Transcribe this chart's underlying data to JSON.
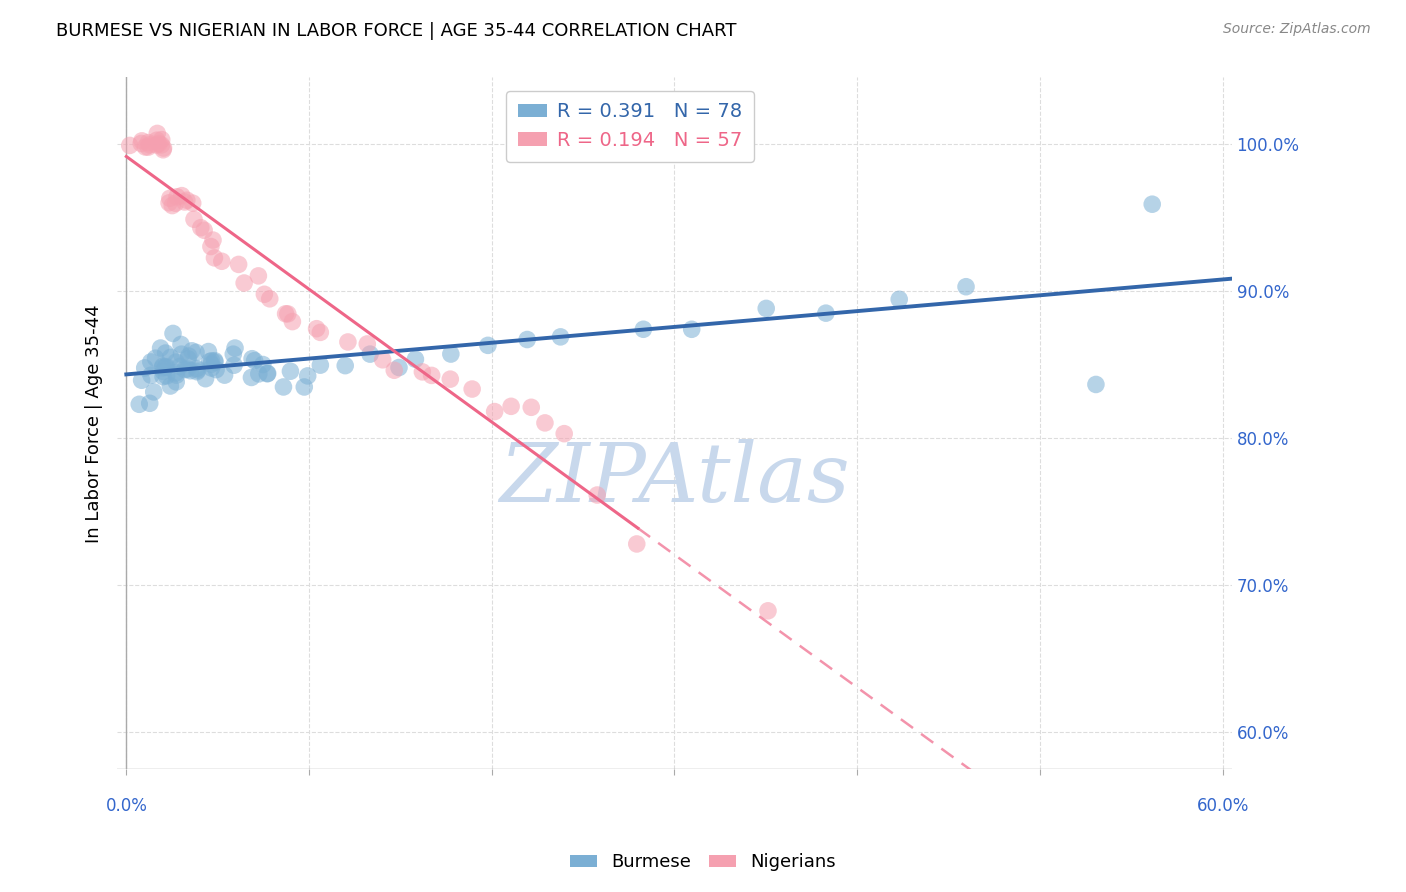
{
  "title": "BURMESE VS NIGERIAN IN LABOR FORCE | AGE 35-44 CORRELATION CHART",
  "source": "Source: ZipAtlas.com",
  "ylabel": "In Labor Force | Age 35-44",
  "y_ticks": [
    0.6,
    0.7,
    0.8,
    0.9,
    1.0
  ],
  "y_tick_labels": [
    "60.0%",
    "70.0%",
    "80.0%",
    "90.0%",
    "100.0%"
  ],
  "xlim": [
    -0.005,
    0.605
  ],
  "ylim": [
    0.575,
    1.045
  ],
  "blue_R": 0.391,
  "blue_N": 78,
  "pink_R": 0.194,
  "pink_N": 57,
  "blue_color": "#7BAFD4",
  "pink_color": "#F5A0B0",
  "blue_line_color": "#3366AA",
  "pink_line_color": "#EE6688",
  "watermark": "ZIPAtlas",
  "watermark_color": "#C8D8EC",
  "legend_label_blue": "Burmese",
  "legend_label_pink": "Nigerians",
  "blue_scatter_x": [
    0.005,
    0.008,
    0.01,
    0.012,
    0.015,
    0.015,
    0.016,
    0.017,
    0.018,
    0.019,
    0.02,
    0.02,
    0.021,
    0.022,
    0.022,
    0.023,
    0.023,
    0.024,
    0.025,
    0.025,
    0.026,
    0.027,
    0.028,
    0.028,
    0.03,
    0.03,
    0.031,
    0.032,
    0.033,
    0.035,
    0.035,
    0.036,
    0.037,
    0.038,
    0.04,
    0.04,
    0.041,
    0.042,
    0.043,
    0.044,
    0.045,
    0.046,
    0.048,
    0.05,
    0.05,
    0.052,
    0.053,
    0.055,
    0.058,
    0.06,
    0.065,
    0.068,
    0.07,
    0.072,
    0.075,
    0.078,
    0.08,
    0.085,
    0.09,
    0.095,
    0.1,
    0.11,
    0.12,
    0.13,
    0.15,
    0.16,
    0.18,
    0.2,
    0.22,
    0.24,
    0.28,
    0.31,
    0.35,
    0.38,
    0.42,
    0.46,
    0.53,
    0.56
  ],
  "blue_scatter_y": [
    0.84,
    0.83,
    0.845,
    0.82,
    0.85,
    0.835,
    0.855,
    0.845,
    0.85,
    0.84,
    0.855,
    0.845,
    0.84,
    0.855,
    0.848,
    0.842,
    0.838,
    0.855,
    0.862,
    0.845,
    0.85,
    0.84,
    0.855,
    0.845,
    0.862,
    0.85,
    0.855,
    0.845,
    0.84,
    0.855,
    0.84,
    0.86,
    0.855,
    0.845,
    0.855,
    0.845,
    0.85,
    0.858,
    0.85,
    0.842,
    0.855,
    0.845,
    0.848,
    0.855,
    0.845,
    0.852,
    0.843,
    0.858,
    0.855,
    0.848,
    0.85,
    0.84,
    0.855,
    0.845,
    0.852,
    0.843,
    0.848,
    0.842,
    0.845,
    0.84,
    0.85,
    0.848,
    0.852,
    0.855,
    0.85,
    0.858,
    0.862,
    0.865,
    0.868,
    0.872,
    0.875,
    0.88,
    0.888,
    0.892,
    0.895,
    0.9,
    0.832,
    0.952
  ],
  "pink_scatter_x": [
    0.005,
    0.007,
    0.008,
    0.01,
    0.01,
    0.012,
    0.013,
    0.015,
    0.016,
    0.017,
    0.018,
    0.019,
    0.02,
    0.021,
    0.022,
    0.023,
    0.024,
    0.025,
    0.027,
    0.028,
    0.03,
    0.032,
    0.033,
    0.035,
    0.038,
    0.04,
    0.042,
    0.045,
    0.048,
    0.05,
    0.055,
    0.06,
    0.065,
    0.07,
    0.075,
    0.08,
    0.085,
    0.09,
    0.095,
    0.1,
    0.11,
    0.12,
    0.13,
    0.14,
    0.15,
    0.16,
    0.17,
    0.18,
    0.19,
    0.2,
    0.21,
    0.22,
    0.23,
    0.24,
    0.26,
    0.28,
    0.35
  ],
  "pink_scatter_y": [
    1.0,
    1.0,
    1.0,
    1.0,
    1.0,
    1.0,
    1.0,
    1.0,
    1.0,
    1.0,
    1.0,
    1.0,
    1.0,
    1.0,
    1.0,
    0.96,
    0.96,
    0.96,
    0.96,
    0.96,
    0.96,
    0.96,
    0.96,
    0.955,
    0.95,
    0.945,
    0.94,
    0.935,
    0.93,
    0.925,
    0.92,
    0.915,
    0.91,
    0.905,
    0.9,
    0.895,
    0.89,
    0.885,
    0.88,
    0.875,
    0.87,
    0.865,
    0.86,
    0.855,
    0.85,
    0.845,
    0.84,
    0.835,
    0.83,
    0.825,
    0.82,
    0.815,
    0.81,
    0.805,
    0.76,
    0.73,
    0.68
  ],
  "title_fontsize": 13,
  "axis_color": "#3366CC",
  "tick_color": "#3366CC",
  "grid_color": "#DDDDDD",
  "border_color": "#AAAAAA"
}
